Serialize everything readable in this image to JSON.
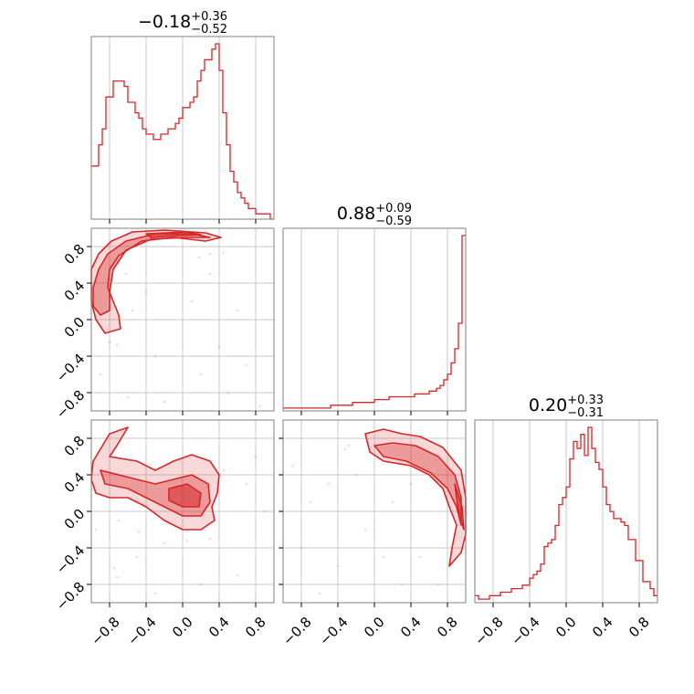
{
  "chart_data": {
    "type": "corner",
    "color": "#d62728",
    "tick_values": [
      -0.8,
      -0.4,
      0.0,
      0.4,
      0.8
    ],
    "tick_labels": [
      "−0.8",
      "−0.4",
      "0.0",
      "0.4",
      "0.8"
    ],
    "axis_range": [
      -1.0,
      1.0
    ],
    "grid": true,
    "panels": [
      {
        "kind": "histogram",
        "row": 0,
        "col": 0,
        "title": {
          "median": "−0.18",
          "upper": "+0.36",
          "lower": "−0.52"
        },
        "bin_edges_start": -1.0,
        "bin_width": 0.04,
        "counts": [
          10,
          10,
          14,
          17,
          23,
          23,
          26,
          26,
          26,
          25,
          22,
          22,
          20,
          19,
          17,
          16,
          16,
          15,
          15,
          16,
          16,
          17,
          17,
          18,
          19,
          21,
          21,
          22,
          23,
          26,
          28,
          30,
          30,
          32,
          33,
          28,
          20,
          14,
          9,
          7,
          5,
          4,
          3,
          2,
          2,
          1,
          1,
          1,
          1,
          0
        ]
      },
      {
        "kind": "histogram",
        "row": 1,
        "col": 1,
        "title": {
          "median": "0.88",
          "upper": "+0.09",
          "lower": "−0.59"
        },
        "bin_edges_start": -1.0,
        "bin_width": 0.04,
        "counts": [
          1,
          1,
          1,
          1,
          1,
          1,
          1,
          1,
          1,
          1,
          1,
          1,
          1,
          2,
          2,
          2,
          2,
          2,
          2,
          3,
          3,
          3,
          3,
          3,
          3,
          4,
          4,
          4,
          4,
          5,
          5,
          5,
          5,
          5,
          5,
          5,
          6,
          6,
          6,
          6,
          7,
          7,
          8,
          9,
          11,
          13,
          17,
          22,
          31,
          62
        ]
      },
      {
        "kind": "histogram",
        "row": 2,
        "col": 2,
        "title": {
          "median": "0.20",
          "upper": "+0.33",
          "lower": "−0.31"
        },
        "bin_edges_start": -1.0,
        "bin_width": 0.04,
        "counts": [
          2,
          1,
          1,
          1,
          2,
          2,
          2,
          3,
          3,
          3,
          4,
          4,
          4,
          5,
          5,
          7,
          8,
          9,
          11,
          16,
          17,
          18,
          22,
          28,
          30,
          33,
          41,
          46,
          44,
          48,
          42,
          50,
          44,
          40,
          38,
          33,
          28,
          26,
          24,
          24,
          23,
          22,
          18,
          18,
          12,
          12,
          6,
          6,
          4,
          2
        ]
      },
      {
        "kind": "density2d",
        "row": 1,
        "col": 0,
        "levels": [
          [
            [
              -1.0,
              0.55
            ],
            [
              -0.92,
              0.72
            ],
            [
              -0.78,
              0.86
            ],
            [
              -0.55,
              0.96
            ],
            [
              -0.2,
              0.98
            ],
            [
              0.25,
              0.95
            ],
            [
              0.42,
              0.9
            ],
            [
              0.25,
              0.86
            ],
            [
              -0.1,
              0.9
            ],
            [
              -0.45,
              0.86
            ],
            [
              -0.7,
              0.7
            ],
            [
              -0.8,
              0.55
            ],
            [
              -0.82,
              0.35
            ],
            [
              -0.7,
              0.05
            ],
            [
              -0.68,
              -0.1
            ],
            [
              -0.85,
              -0.15
            ],
            [
              -0.95,
              0.0
            ],
            [
              -1.0,
              0.2
            ]
          ],
          [
            [
              -0.98,
              0.35
            ],
            [
              -0.92,
              0.55
            ],
            [
              -0.82,
              0.72
            ],
            [
              -0.62,
              0.86
            ],
            [
              -0.3,
              0.94
            ],
            [
              0.1,
              0.94
            ],
            [
              0.3,
              0.9
            ],
            [
              0.05,
              0.9
            ],
            [
              -0.35,
              0.88
            ],
            [
              -0.62,
              0.76
            ],
            [
              -0.76,
              0.55
            ],
            [
              -0.8,
              0.3
            ],
            [
              -0.8,
              0.1
            ],
            [
              -0.9,
              0.05
            ],
            [
              -0.98,
              0.15
            ]
          ],
          [
            [
              -0.4,
              0.94
            ],
            [
              0.05,
              0.96
            ],
            [
              0.2,
              0.93
            ],
            [
              -0.05,
              0.92
            ],
            [
              -0.35,
              0.9
            ]
          ]
        ],
        "points": [
          [
            -0.62,
            0.5
          ],
          [
            0.18,
            0.68
          ],
          [
            0.3,
            0.72
          ],
          [
            0.45,
            0.73
          ],
          [
            -0.8,
            -0.25
          ],
          [
            -0.72,
            -0.28
          ],
          [
            -0.55,
            0.1
          ],
          [
            -0.3,
            -0.4
          ],
          [
            0.2,
            -0.6
          ],
          [
            0.5,
            -0.8
          ],
          [
            -0.6,
            -0.85
          ],
          [
            0.7,
            -0.5
          ],
          [
            0.1,
            0.2
          ],
          [
            -0.2,
            -0.9
          ],
          [
            0.4,
            -0.3
          ],
          [
            0.85,
            -0.95
          ],
          [
            -0.9,
            -0.6
          ],
          [
            0.3,
            0.5
          ],
          [
            -0.4,
            0.3
          ],
          [
            0.6,
            0.1
          ]
        ]
      },
      {
        "kind": "density2d",
        "row": 2,
        "col": 0,
        "levels": [
          [
            [
              -0.98,
              0.55
            ],
            [
              -0.8,
              0.85
            ],
            [
              -0.6,
              0.92
            ],
            [
              -0.72,
              0.72
            ],
            [
              -0.8,
              0.6
            ],
            [
              -0.5,
              0.55
            ],
            [
              -0.3,
              0.45
            ],
            [
              -0.1,
              0.55
            ],
            [
              0.1,
              0.62
            ],
            [
              0.3,
              0.55
            ],
            [
              0.4,
              0.4
            ],
            [
              0.38,
              0.2
            ],
            [
              0.32,
              0.05
            ],
            [
              0.35,
              -0.1
            ],
            [
              0.2,
              -0.2
            ],
            [
              0.0,
              -0.2
            ],
            [
              -0.2,
              -0.1
            ],
            [
              -0.4,
              0.05
            ],
            [
              -0.6,
              0.15
            ],
            [
              -0.8,
              0.15
            ],
            [
              -0.95,
              0.2
            ],
            [
              -1.0,
              0.35
            ]
          ],
          [
            [
              -0.9,
              0.45
            ],
            [
              -0.7,
              0.4
            ],
            [
              -0.5,
              0.35
            ],
            [
              -0.3,
              0.3
            ],
            [
              -0.1,
              0.35
            ],
            [
              0.1,
              0.4
            ],
            [
              0.28,
              0.3
            ],
            [
              0.3,
              0.1
            ],
            [
              0.2,
              -0.05
            ],
            [
              0.0,
              -0.05
            ],
            [
              -0.2,
              0.05
            ],
            [
              -0.4,
              0.15
            ],
            [
              -0.6,
              0.25
            ],
            [
              -0.85,
              0.3
            ]
          ],
          [
            [
              -0.15,
              0.25
            ],
            [
              0.05,
              0.3
            ],
            [
              0.2,
              0.2
            ],
            [
              0.18,
              0.05
            ],
            [
              0.0,
              0.05
            ],
            [
              -0.15,
              0.12
            ]
          ]
        ],
        "points": [
          [
            -0.75,
            -0.62
          ],
          [
            -0.72,
            -0.72
          ],
          [
            -0.95,
            -0.2
          ],
          [
            -0.7,
            -0.1
          ],
          [
            -0.48,
            -0.22
          ],
          [
            -0.2,
            -0.35
          ],
          [
            0.05,
            -0.32
          ],
          [
            0.3,
            -0.3
          ],
          [
            0.45,
            0.45
          ],
          [
            0.7,
            0.3
          ],
          [
            0.9,
            0.0
          ],
          [
            0.6,
            -0.7
          ],
          [
            -0.3,
            -0.9
          ],
          [
            0.2,
            -0.8
          ],
          [
            0.8,
            0.6
          ],
          [
            -0.5,
            -0.5
          ]
        ]
      },
      {
        "kind": "density2d",
        "row": 2,
        "col": 1,
        "levels": [
          [
            [
              -0.1,
              0.85
            ],
            [
              0.1,
              0.9
            ],
            [
              0.3,
              0.85
            ],
            [
              0.5,
              0.82
            ],
            [
              0.75,
              0.7
            ],
            [
              0.95,
              0.45
            ],
            [
              1.0,
              0.15
            ],
            [
              1.0,
              -0.25
            ],
            [
              0.95,
              -0.45
            ],
            [
              0.82,
              -0.6
            ],
            [
              0.85,
              -0.4
            ],
            [
              0.9,
              -0.15
            ],
            [
              0.82,
              0.05
            ],
            [
              0.75,
              0.25
            ],
            [
              0.6,
              0.4
            ],
            [
              0.4,
              0.5
            ],
            [
              0.1,
              0.55
            ],
            [
              -0.05,
              0.65
            ]
          ],
          [
            [
              0.0,
              0.72
            ],
            [
              0.2,
              0.75
            ],
            [
              0.45,
              0.72
            ],
            [
              0.7,
              0.6
            ],
            [
              0.88,
              0.4
            ],
            [
              0.95,
              0.15
            ],
            [
              0.95,
              -0.15
            ],
            [
              0.9,
              0.05
            ],
            [
              0.8,
              0.25
            ],
            [
              0.62,
              0.42
            ],
            [
              0.35,
              0.55
            ],
            [
              0.1,
              0.6
            ]
          ],
          [
            [
              0.88,
              0.3
            ],
            [
              0.96,
              0.05
            ],
            [
              0.98,
              -0.2
            ],
            [
              0.93,
              -0.05
            ],
            [
              0.9,
              0.15
            ]
          ]
        ],
        "points": [
          [
            -0.28,
            0.72
          ],
          [
            -0.32,
            0.68
          ],
          [
            -0.5,
            0.3
          ],
          [
            -0.7,
            0.1
          ],
          [
            -0.8,
            -0.4
          ],
          [
            -0.4,
            -0.6
          ],
          [
            -0.1,
            -0.2
          ],
          [
            0.2,
            0.1
          ],
          [
            0.5,
            -0.5
          ],
          [
            0.3,
            -0.8
          ],
          [
            -0.9,
            0.5
          ],
          [
            -0.6,
            -0.9
          ],
          [
            0.7,
            -0.8
          ],
          [
            0.1,
            -0.5
          ],
          [
            -0.2,
            0.4
          ],
          [
            0.4,
            0.3
          ]
        ]
      }
    ]
  }
}
